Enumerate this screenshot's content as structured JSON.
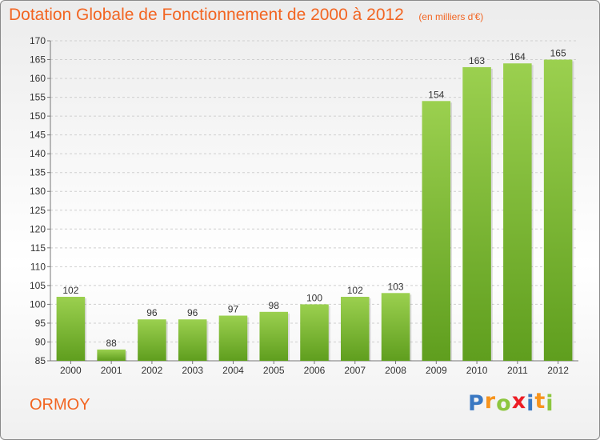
{
  "chart_data": {
    "type": "bar",
    "title": "Dotation Globale de Fonctionnement de 2000 à 2012",
    "subtitle": "(en milliers d'€)",
    "categories": [
      "2000",
      "2001",
      "2002",
      "2003",
      "2004",
      "2005",
      "2006",
      "2007",
      "2008",
      "2009",
      "2010",
      "2011",
      "2012"
    ],
    "values": [
      102,
      88,
      96,
      96,
      97,
      98,
      100,
      102,
      103,
      154,
      163,
      164,
      165
    ],
    "ylim": [
      85,
      170
    ],
    "yticks": [
      85,
      90,
      95,
      100,
      105,
      110,
      115,
      120,
      125,
      130,
      135,
      140,
      145,
      150,
      155,
      160,
      165,
      170
    ],
    "grid": true,
    "bar_color": "#7cc242"
  },
  "footer": {
    "commune": "ORMOY",
    "brand": [
      "P",
      "r",
      "o",
      "x",
      "i",
      "t",
      "i"
    ],
    "brand_colors": [
      "#3a78c2",
      "#f7941d",
      "#8dc63f",
      "#ed1c24",
      "#3a78c2",
      "#f7941d",
      "#8dc63f"
    ]
  }
}
